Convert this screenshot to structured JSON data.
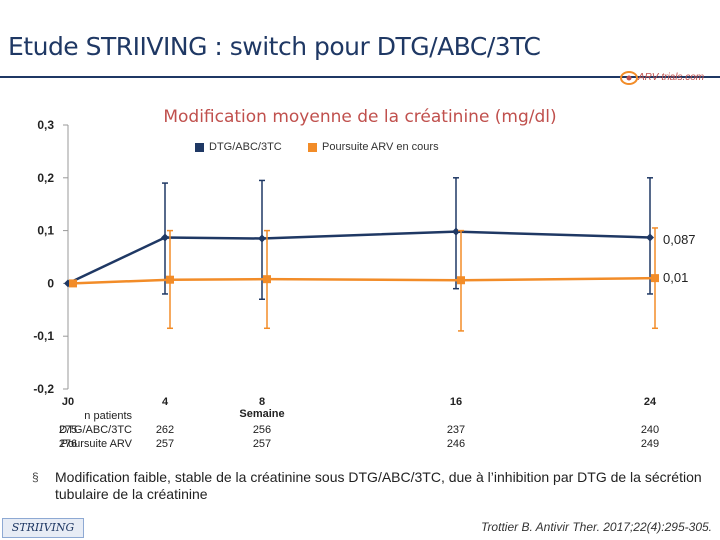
{
  "slide": {
    "title": "Etude STRIIVING : switch pour DTG/ABC/3TC",
    "logo_text": "ARV-trials.com",
    "bullet": "§",
    "note": "Modification faible, stable de la créatinine sous DTG/ABC/3TC, due à l’inhibition par DTG de la sécrétion tubulaire de la créatinine",
    "footer_tag": "STRIIVING",
    "citation": "Trottier B. Antivir Ther. 2017;22(4):295-305."
  },
  "colors": {
    "dtg": "#1f3864",
    "arv": "#f28c28",
    "title_red": "#c0504d"
  },
  "chart_data": {
    "type": "line",
    "title": "Modification moyenne de la créatinine (mg/dl)",
    "xlabel": "Semaine",
    "ylabel": "",
    "x": [
      "J0",
      "4",
      "8",
      "16",
      "24"
    ],
    "ylim": [
      -0.2,
      0.3
    ],
    "yticks": [
      "0,3",
      "0,2",
      "0,1",
      "0",
      "-0,1",
      "-0,2"
    ],
    "ytick_values": [
      0.3,
      0.2,
      0.1,
      0,
      -0.1,
      -0.2
    ],
    "series": [
      {
        "name": "DTG/ABC/3TC",
        "values": [
          0.0,
          0.087,
          0.085,
          0.098,
          0.087
        ],
        "err_low": [
          0.0,
          -0.02,
          -0.03,
          -0.01,
          -0.02
        ],
        "err_high": [
          0.0,
          0.19,
          0.195,
          0.2,
          0.2
        ]
      },
      {
        "name": "Poursuite ARV en cours",
        "values": [
          0.0,
          0.007,
          0.008,
          0.006,
          0.01
        ],
        "err_low": [
          0.0,
          -0.085,
          -0.085,
          -0.09,
          -0.085
        ],
        "err_high": [
          0.0,
          0.1,
          0.1,
          0.1,
          0.105
        ]
      }
    ],
    "end_labels": [
      "0,087",
      "0,01"
    ],
    "n_patients": {
      "header": "n patients",
      "rows": [
        {
          "label": "DTG/ABC/3TC",
          "values": [
            "275",
            "262",
            "256",
            "237",
            "240"
          ]
        },
        {
          "label": "Poursuite ARV",
          "values": [
            "276",
            "257",
            "257",
            "246",
            "249"
          ]
        }
      ]
    },
    "grid": false,
    "legend_position": "top"
  }
}
